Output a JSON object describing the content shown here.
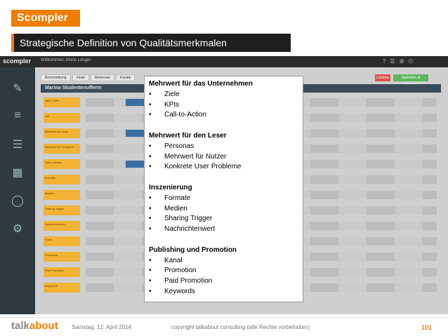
{
  "slide": {
    "brand": "Scompler",
    "subtitle": "Strategische Definition von Qualitätsmerkmalen"
  },
  "app": {
    "logo": "scompler",
    "welcome": "Willkommen, Mario Langer",
    "panel_title": "Marina Studentenufferin",
    "btn_red": "Löschen",
    "btn_green": "Speichern & Schließen",
    "tabs": [
      "Beschreibung",
      "Inhalt",
      "Merkmale",
      "Kanäle"
    ],
    "row_labels": [
      "Ziele / KPIs",
      "Ziel",
      "Mehrwert für Leser",
      "Mehrwert für Probleme",
      "Call-to-Action",
      "Formate",
      "Medien",
      "Sharing Trigger",
      "Nachrichtenwert",
      "Kanal",
      "Promotion",
      "Paid Promotion",
      "Keywords"
    ]
  },
  "overlay": {
    "sections": [
      {
        "title": "Mehrwert für das Unternehmen",
        "items": [
          "Ziele",
          "KPIs",
          "Call-to-Action"
        ]
      },
      {
        "title": "Mehrwert für den Leser",
        "items": [
          "Personas",
          "Mehrwert für Nutzer",
          "Konkrete User Probleme"
        ]
      },
      {
        "title": "Inszenierung",
        "items": [
          "Formate",
          "Medien",
          "Sharing Trigger",
          "Nachrichtenwert"
        ]
      },
      {
        "title": "Publishing und Promotion",
        "items": [
          "Kanal",
          "Promotion",
          "Paid Promotion",
          "Keywords"
        ]
      }
    ]
  },
  "footer": {
    "talk": "talk",
    "about": "about",
    "date": "Samstag, 12. April 2014",
    "copyright": "copyright talkabout consulting (alle Rechte vorbehalten)",
    "page": "101"
  }
}
